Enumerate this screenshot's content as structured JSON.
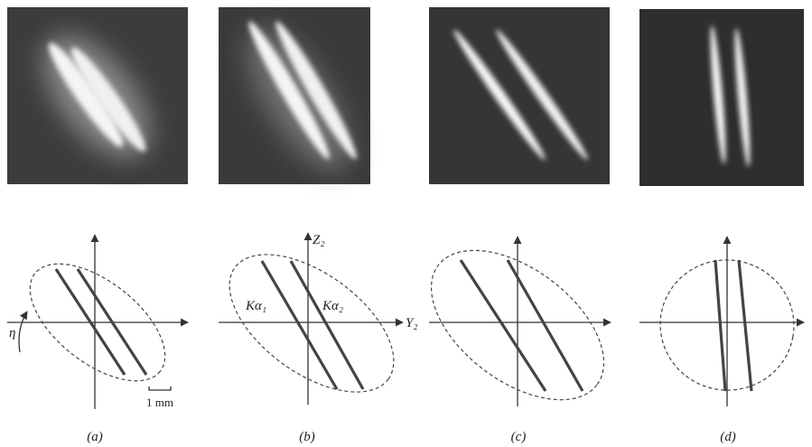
{
  "panels": [
    {
      "label": "(a)"
    },
    {
      "label": "(b)"
    },
    {
      "label": "(c)"
    },
    {
      "label": "(d)"
    }
  ],
  "annotations": {
    "eta": "η",
    "k_alpha_1": "Kα₁",
    "k_alpha_2": "Kα₂",
    "z_axis": "Z₂",
    "y_axis": "Y₂",
    "scale": "1 mm"
  }
}
